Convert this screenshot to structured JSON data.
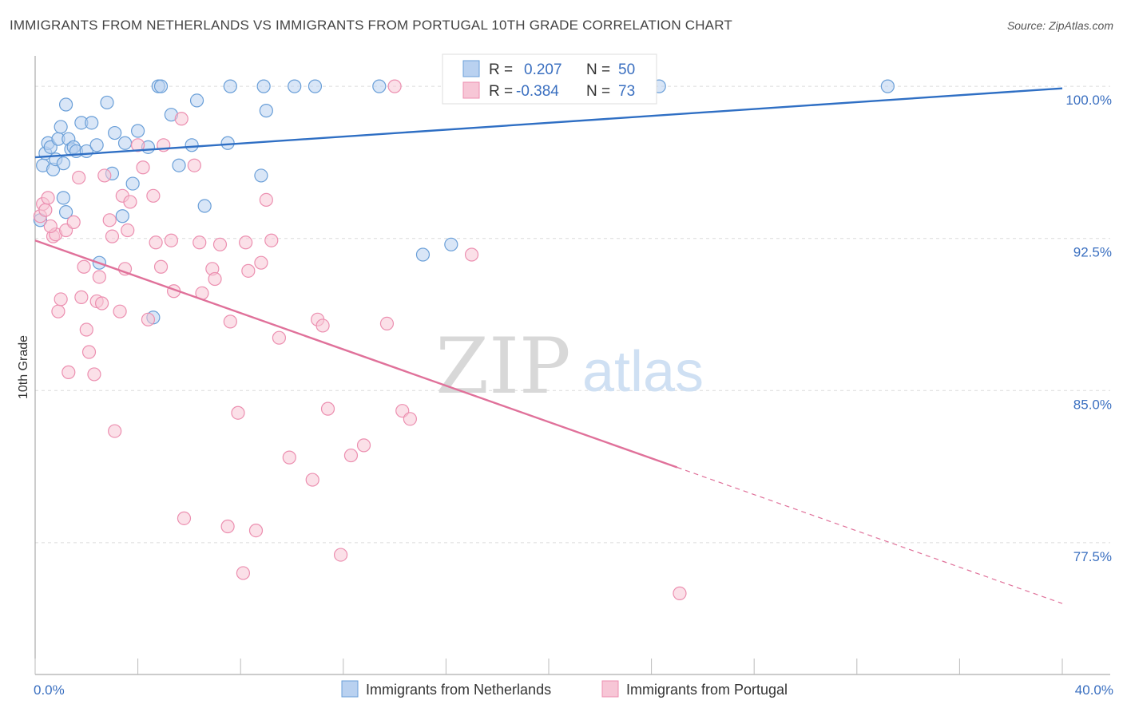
{
  "chart_data": {
    "type": "scatter",
    "title": "IMMIGRANTS FROM NETHERLANDS VS IMMIGRANTS FROM PORTUGAL 10TH GRADE CORRELATION CHART",
    "source": "Source: ZipAtlas.com",
    "watermark": {
      "part1": "ZIP",
      "part2": "atlas"
    },
    "ylabel": "10th Grade",
    "xlim": [
      0,
      40
    ],
    "ylim": [
      71.0,
      101.5
    ],
    "x_tick_labels": [
      "0.0%",
      "40.0%"
    ],
    "y_ticks": [
      {
        "value": 100.0,
        "label": "100.0%"
      },
      {
        "value": 92.5,
        "label": "92.5%"
      },
      {
        "value": 85.0,
        "label": "85.0%"
      },
      {
        "value": 77.5,
        "label": "77.5%"
      }
    ],
    "legend_top": [
      {
        "r_label": "R =",
        "r_value": "0.207",
        "n_label": "N =",
        "n_value": "50",
        "color": "#6a9fd8"
      },
      {
        "r_label": "R =",
        "r_value": "-0.384",
        "n_label": "N =",
        "n_value": "73",
        "color": "#ec8fb0"
      }
    ],
    "series": [
      {
        "name": "Immigrants from Netherlands",
        "color": "#6a9fd8",
        "fill": "#b9d1f0",
        "trend": {
          "x0": 0,
          "y0": 96.5,
          "x1": 40,
          "y1": 99.9,
          "solid_until": 40
        },
        "points": [
          [
            0.3,
            96.1
          ],
          [
            0.4,
            96.7
          ],
          [
            0.5,
            97.2
          ],
          [
            0.6,
            97.0
          ],
          [
            0.7,
            95.9
          ],
          [
            0.8,
            96.4
          ],
          [
            0.9,
            97.4
          ],
          [
            1.0,
            98.0
          ],
          [
            1.1,
            96.2
          ],
          [
            1.2,
            99.1
          ],
          [
            1.3,
            97.4
          ],
          [
            1.4,
            96.9
          ],
          [
            1.5,
            97.0
          ],
          [
            1.6,
            96.8
          ],
          [
            1.8,
            98.2
          ],
          [
            2.0,
            96.8
          ],
          [
            2.2,
            98.2
          ],
          [
            2.4,
            97.1
          ],
          [
            2.8,
            99.2
          ],
          [
            3.1,
            97.7
          ],
          [
            3.5,
            97.2
          ],
          [
            4.0,
            97.8
          ],
          [
            4.4,
            97.0
          ],
          [
            4.8,
            100.0
          ],
          [
            4.9,
            100.0
          ],
          [
            5.3,
            98.6
          ],
          [
            5.6,
            96.1
          ],
          [
            6.1,
            97.1
          ],
          [
            6.3,
            99.3
          ],
          [
            7.5,
            97.2
          ],
          [
            7.6,
            100.0
          ],
          [
            8.9,
            100.0
          ],
          [
            9.0,
            98.8
          ],
          [
            10.1,
            100.0
          ],
          [
            10.9,
            100.0
          ],
          [
            13.4,
            100.0
          ],
          [
            24.3,
            100.0
          ],
          [
            33.2,
            100.0
          ],
          [
            1.1,
            94.5
          ],
          [
            1.2,
            93.8
          ],
          [
            2.5,
            91.3
          ],
          [
            3.4,
            93.6
          ],
          [
            3.8,
            95.2
          ],
          [
            6.6,
            94.1
          ],
          [
            8.8,
            95.6
          ],
          [
            15.1,
            91.7
          ],
          [
            16.2,
            92.2
          ],
          [
            4.6,
            88.6
          ],
          [
            3.0,
            95.7
          ],
          [
            0.2,
            93.4
          ]
        ]
      },
      {
        "name": "Immigrants from Portugal",
        "color": "#ec8fb0",
        "fill": "#f7c6d6",
        "trend": {
          "x0": 0,
          "y0": 92.4,
          "x1": 40,
          "y1": 74.5,
          "solid_until": 25.0
        },
        "points": [
          [
            0.2,
            93.6
          ],
          [
            0.3,
            94.2
          ],
          [
            0.4,
            93.9
          ],
          [
            0.5,
            94.5
          ],
          [
            0.7,
            92.6
          ],
          [
            0.8,
            92.7
          ],
          [
            0.9,
            88.9
          ],
          [
            1.0,
            89.5
          ],
          [
            1.2,
            92.9
          ],
          [
            1.3,
            85.9
          ],
          [
            1.5,
            93.3
          ],
          [
            1.7,
            95.5
          ],
          [
            1.8,
            89.6
          ],
          [
            1.9,
            91.1
          ],
          [
            2.0,
            88.0
          ],
          [
            2.1,
            86.9
          ],
          [
            2.3,
            85.8
          ],
          [
            2.4,
            89.4
          ],
          [
            2.5,
            90.6
          ],
          [
            2.6,
            89.3
          ],
          [
            2.7,
            95.6
          ],
          [
            2.9,
            93.4
          ],
          [
            3.0,
            92.6
          ],
          [
            3.1,
            83.0
          ],
          [
            3.3,
            88.9
          ],
          [
            3.4,
            94.6
          ],
          [
            3.5,
            91.0
          ],
          [
            3.6,
            92.9
          ],
          [
            3.7,
            94.3
          ],
          [
            4.0,
            97.1
          ],
          [
            4.2,
            96.0
          ],
          [
            4.4,
            88.5
          ],
          [
            4.6,
            94.6
          ],
          [
            4.7,
            92.3
          ],
          [
            4.9,
            91.1
          ],
          [
            5.0,
            97.1
          ],
          [
            5.3,
            92.4
          ],
          [
            5.4,
            89.9
          ],
          [
            5.7,
            98.4
          ],
          [
            5.8,
            78.7
          ],
          [
            6.2,
            96.1
          ],
          [
            6.4,
            92.3
          ],
          [
            6.5,
            89.8
          ],
          [
            6.9,
            91.0
          ],
          [
            7.0,
            90.5
          ],
          [
            7.2,
            92.2
          ],
          [
            7.5,
            78.3
          ],
          [
            7.6,
            88.4
          ],
          [
            7.9,
            83.9
          ],
          [
            8.1,
            76.0
          ],
          [
            8.2,
            92.3
          ],
          [
            8.3,
            90.9
          ],
          [
            8.6,
            78.1
          ],
          [
            8.8,
            91.3
          ],
          [
            9.0,
            94.4
          ],
          [
            9.2,
            92.4
          ],
          [
            9.5,
            87.6
          ],
          [
            9.9,
            81.7
          ],
          [
            10.8,
            80.6
          ],
          [
            11.0,
            88.5
          ],
          [
            11.2,
            88.2
          ],
          [
            11.4,
            84.1
          ],
          [
            11.9,
            76.9
          ],
          [
            12.3,
            81.8
          ],
          [
            12.8,
            82.3
          ],
          [
            13.7,
            88.3
          ],
          [
            14.3,
            84.0
          ],
          [
            14.6,
            83.6
          ],
          [
            17.0,
            91.7
          ],
          [
            25.1,
            75.0
          ],
          [
            14.0,
            100.0
          ],
          [
            16.9,
            100.0
          ],
          [
            0.6,
            93.1
          ]
        ]
      }
    ]
  }
}
